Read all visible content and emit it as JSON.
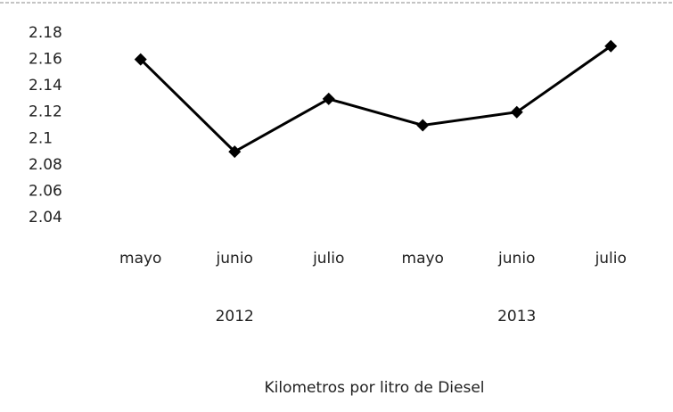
{
  "chart_data": {
    "type": "line",
    "title": "Kilometros por litro de Diesel",
    "categories": [
      "mayo",
      "junio",
      "julio",
      "mayo",
      "junio",
      "julio"
    ],
    "category_groups": [
      "2012",
      "2013"
    ],
    "series": [
      {
        "name": "Kilometros por litro de Diesel",
        "color": "#000000",
        "values": [
          2.16,
          2.09,
          2.13,
          2.11,
          2.12,
          2.17
        ]
      }
    ],
    "ylim": [
      2.04,
      2.18
    ],
    "yticks": [
      2.04,
      2.06,
      2.08,
      2.1,
      2.12,
      2.14,
      2.16,
      2.18
    ],
    "grid": false,
    "legend": false
  }
}
